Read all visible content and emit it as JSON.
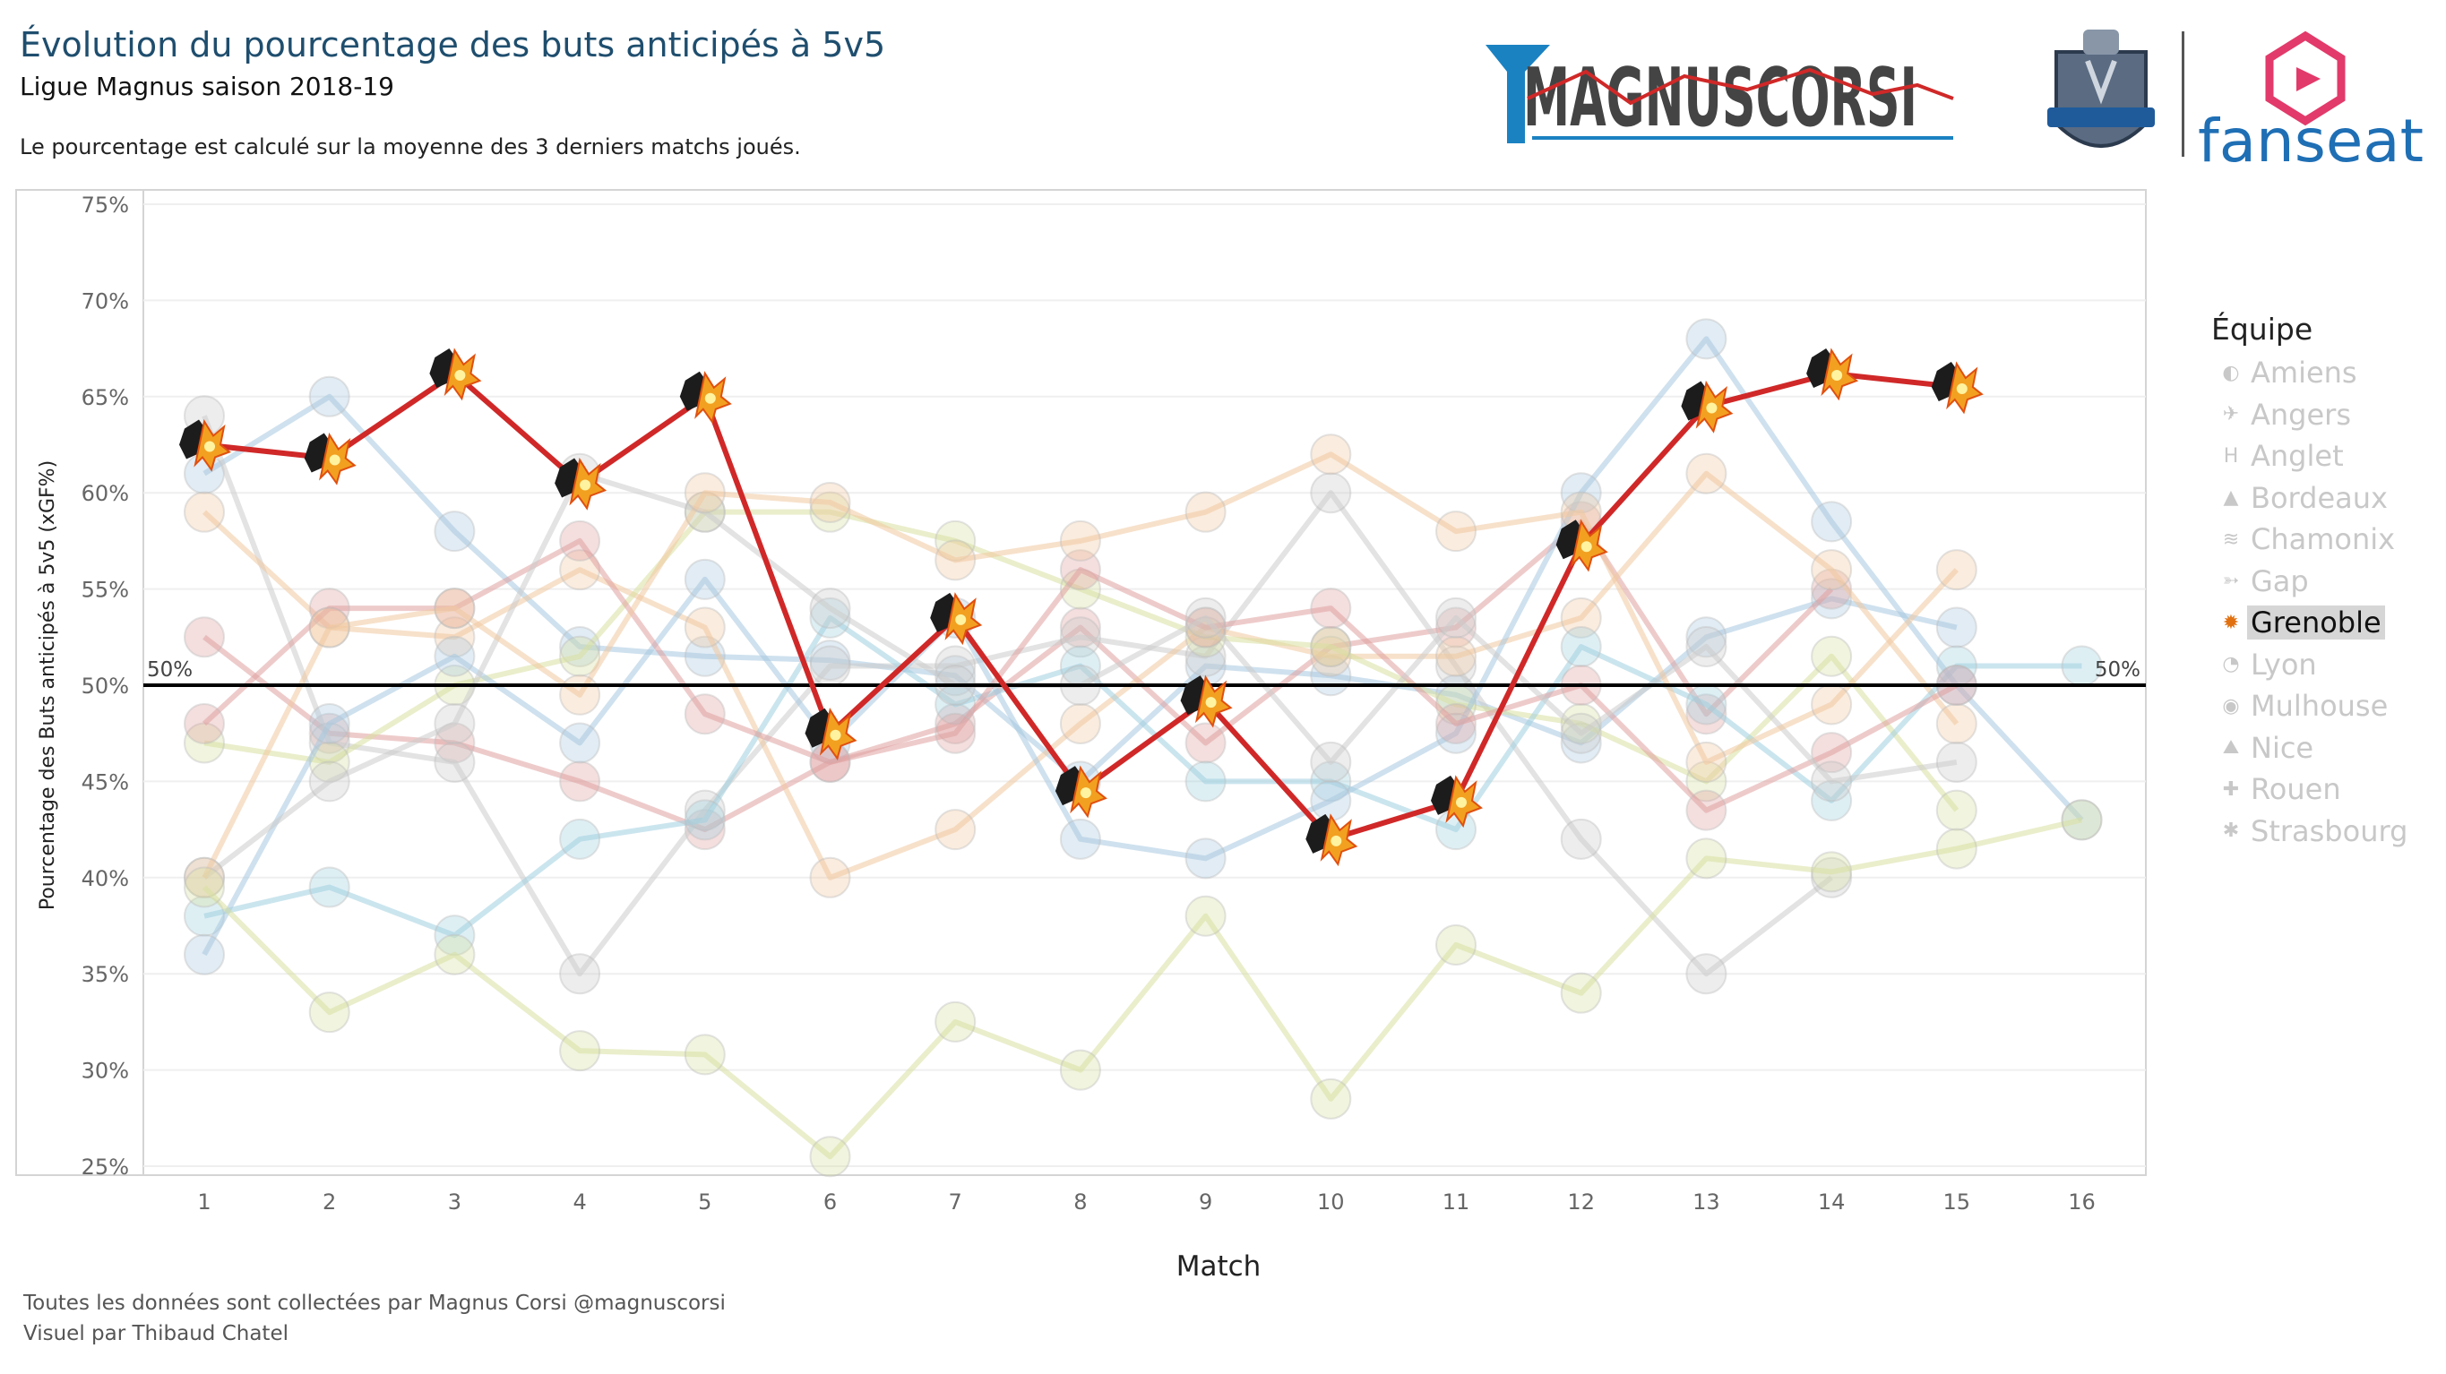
{
  "header": {
    "title": "Évolution du pourcentage des buts anticipés à 5v5",
    "subtitle": "Ligue Magnus saison 2018-19",
    "note": "Le pourcentage est calculé sur la moyenne des 3 derniers matchs joués."
  },
  "logos": {
    "magnuscorsi": "MAGNUSCORSI",
    "fanseat": "fanseat"
  },
  "footer": {
    "line1": "Toutes les données sont collectées par Magnus Corsi @magnuscorsi",
    "line2": "Visuel par Thibaud Chatel"
  },
  "legend": {
    "title": "Équipe",
    "items": [
      "Amiens",
      "Angers",
      "Anglet",
      "Bordeaux",
      "Chamonix",
      "Gap",
      "Grenoble",
      "Lyon",
      "Mulhouse",
      "Nice",
      "Rouen",
      "Strasbourg"
    ],
    "highlighted": "Grenoble"
  },
  "colors": {
    "highlight": "#d02828",
    "reference": "#000000",
    "background_series": [
      "#a8c8e0",
      "#e0a0a0",
      "#cccccc",
      "#f0c8a0",
      "#d8e0a0",
      "#a0d0e0"
    ]
  },
  "chart_data": {
    "type": "line",
    "xlabel": "Match",
    "ylabel": "Pourcentage des Buts anticipés à 5v5 (xGF%)",
    "x": [
      1,
      2,
      3,
      4,
      5,
      6,
      7,
      8,
      9,
      10,
      11,
      12,
      13,
      14,
      15,
      16
    ],
    "ylim": [
      25,
      75
    ],
    "yticks": [
      "25%",
      "30%",
      "35%",
      "40%",
      "45%",
      "50%",
      "55%",
      "60%",
      "65%",
      "70%",
      "75%"
    ],
    "reference_line": {
      "value": 50,
      "label_left": "50%",
      "label_right": "50%"
    },
    "highlighted_series": {
      "name": "Grenoble",
      "values": [
        62.5,
        61.8,
        66.2,
        60.5,
        65,
        47.5,
        53.5,
        44.5,
        49.2,
        42,
        44,
        57.3,
        64.5,
        66.2,
        65.5,
        null
      ]
    },
    "series": [
      {
        "name": "Amiens",
        "values": [
          61,
          65,
          58,
          52,
          51.5,
          51.3,
          50.5,
          45,
          51,
          50.5,
          49.5,
          47,
          52.5,
          54.5,
          53,
          null
        ]
      },
      {
        "name": "Angers",
        "values": [
          52.5,
          47.5,
          47,
          45,
          42.5,
          46,
          48,
          53,
          47,
          52,
          53,
          58.5,
          48.5,
          55,
          null,
          null
        ]
      },
      {
        "name": "Anglet",
        "values": [
          64,
          47,
          46,
          35,
          43.5,
          51,
          51,
          52.5,
          51.5,
          60,
          51,
          42,
          35,
          40,
          null,
          null
        ]
      },
      {
        "name": "Bordeaux",
        "values": [
          59,
          53,
          52.5,
          56,
          53,
          40,
          42.5,
          48,
          53,
          51.5,
          51.5,
          53.5,
          61,
          56,
          48,
          null
        ]
      },
      {
        "name": "Chamonix",
        "values": [
          47,
          46,
          50,
          51.5,
          59,
          59,
          57.5,
          55,
          52.5,
          52,
          49,
          48,
          45,
          51.5,
          43.5,
          null
        ]
      },
      {
        "name": "Gap",
        "values": [
          38,
          39.5,
          37,
          42,
          43,
          53.5,
          49,
          51,
          45,
          45,
          42.5,
          52,
          49,
          44,
          51,
          51
        ]
      },
      {
        "name": "Lyon",
        "values": [
          36,
          48,
          51.5,
          47,
          55.5,
          47,
          53.5,
          42,
          41,
          44,
          47.5,
          60,
          68,
          58.5,
          50,
          43
        ]
      },
      {
        "name": "Mulhouse",
        "values": [
          48,
          54,
          54,
          57.5,
          48.5,
          46,
          47.5,
          56,
          53,
          54,
          48,
          50,
          43.5,
          46.5,
          50,
          null
        ]
      },
      {
        "name": "Nice",
        "values": [
          40,
          45,
          48,
          61,
          59,
          54,
          50,
          50,
          53.5,
          46,
          53.5,
          47.5,
          52,
          45,
          46,
          null
        ]
      },
      {
        "name": "Rouen",
        "values": [
          40,
          53,
          54,
          49.5,
          60,
          59.5,
          56.5,
          57.5,
          59,
          62,
          58,
          59,
          46,
          49,
          56,
          null
        ]
      },
      {
        "name": "Strasbourg",
        "values": [
          39.5,
          33,
          36,
          31,
          30.8,
          25.5,
          32.5,
          30,
          38,
          28.5,
          36.5,
          34,
          41,
          40.3,
          41.5,
          43
        ]
      }
    ]
  }
}
